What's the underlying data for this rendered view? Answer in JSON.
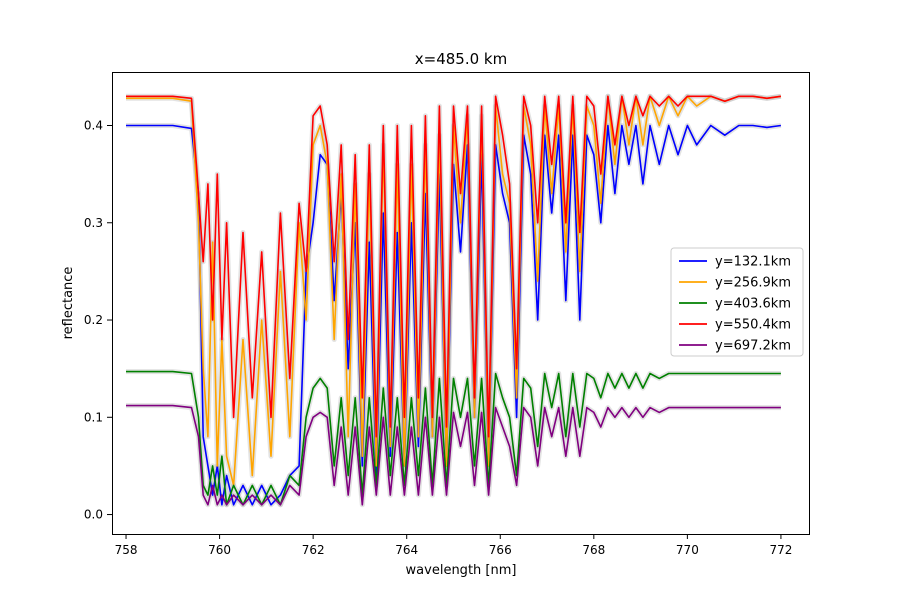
{
  "chart_data": {
    "type": "line",
    "title": "x=485.0 km",
    "xlabel": "wavelength [nm]",
    "ylabel": "reflectance",
    "xlim": [
      757.7,
      772.6
    ],
    "ylim": [
      -0.02,
      0.455
    ],
    "xticks": [
      758,
      760,
      762,
      764,
      766,
      768,
      770,
      772
    ],
    "xtick_labels": [
      "758",
      "760",
      "762",
      "764",
      "766",
      "768",
      "770",
      "772"
    ],
    "yticks": [
      0.0,
      0.1,
      0.2,
      0.3,
      0.4
    ],
    "ytick_labels": [
      "0.0",
      "0.1",
      "0.2",
      "0.3",
      "0.4"
    ],
    "grid": false,
    "legend_position": "center-right",
    "uncertainty_band_color": "#b0b0b0",
    "x": [
      758.0,
      759.0,
      759.4,
      759.55,
      759.65,
      759.75,
      759.85,
      759.95,
      760.05,
      760.15,
      760.3,
      760.5,
      760.7,
      760.9,
      761.1,
      761.3,
      761.5,
      761.7,
      761.85,
      762.0,
      762.15,
      762.3,
      762.45,
      762.6,
      762.75,
      762.9,
      763.05,
      763.2,
      763.35,
      763.5,
      763.65,
      763.8,
      763.95,
      764.1,
      764.25,
      764.4,
      764.55,
      764.7,
      764.85,
      765.0,
      765.15,
      765.3,
      765.45,
      765.6,
      765.75,
      765.9,
      766.05,
      766.2,
      766.35,
      766.5,
      766.65,
      766.8,
      766.95,
      767.1,
      767.25,
      767.4,
      767.55,
      767.7,
      767.85,
      768.0,
      768.15,
      768.3,
      768.45,
      768.6,
      768.75,
      768.9,
      769.05,
      769.2,
      769.4,
      769.6,
      769.8,
      770.0,
      770.2,
      770.5,
      770.8,
      771.1,
      771.4,
      771.7,
      772.0
    ],
    "series": [
      {
        "name": "y=132.1km",
        "color": "#0000ff",
        "values": [
          0.4,
          0.4,
          0.397,
          0.33,
          0.08,
          0.05,
          0.02,
          0.05,
          0.01,
          0.04,
          0.01,
          0.03,
          0.01,
          0.03,
          0.01,
          0.02,
          0.04,
          0.05,
          0.25,
          0.3,
          0.37,
          0.36,
          0.22,
          0.33,
          0.15,
          0.3,
          0.05,
          0.28,
          0.04,
          0.31,
          0.06,
          0.29,
          0.05,
          0.3,
          0.07,
          0.33,
          0.08,
          0.35,
          0.05,
          0.36,
          0.27,
          0.38,
          0.1,
          0.37,
          0.05,
          0.38,
          0.33,
          0.3,
          0.1,
          0.39,
          0.35,
          0.2,
          0.39,
          0.31,
          0.39,
          0.22,
          0.39,
          0.2,
          0.39,
          0.37,
          0.3,
          0.4,
          0.33,
          0.4,
          0.36,
          0.4,
          0.34,
          0.4,
          0.36,
          0.4,
          0.37,
          0.4,
          0.38,
          0.4,
          0.39,
          0.4,
          0.4,
          0.398,
          0.4
        ]
      },
      {
        "name": "y=256.9km",
        "color": "#ffa500",
        "values": [
          0.428,
          0.428,
          0.425,
          0.3,
          0.15,
          0.08,
          0.28,
          0.05,
          0.18,
          0.06,
          0.03,
          0.18,
          0.04,
          0.2,
          0.06,
          0.25,
          0.08,
          0.3,
          0.2,
          0.38,
          0.4,
          0.36,
          0.18,
          0.35,
          0.08,
          0.34,
          0.06,
          0.35,
          0.05,
          0.38,
          0.07,
          0.36,
          0.05,
          0.36,
          0.08,
          0.38,
          0.08,
          0.39,
          0.05,
          0.4,
          0.3,
          0.41,
          0.1,
          0.41,
          0.05,
          0.42,
          0.35,
          0.32,
          0.12,
          0.42,
          0.38,
          0.24,
          0.42,
          0.33,
          0.42,
          0.27,
          0.42,
          0.25,
          0.42,
          0.4,
          0.32,
          0.43,
          0.36,
          0.43,
          0.38,
          0.43,
          0.38,
          0.43,
          0.4,
          0.43,
          0.41,
          0.43,
          0.42,
          0.43,
          0.425,
          0.43,
          0.43,
          0.428,
          0.43
        ]
      },
      {
        "name": "y=403.6km",
        "color": "#008000",
        "values": [
          0.147,
          0.147,
          0.145,
          0.1,
          0.03,
          0.02,
          0.05,
          0.02,
          0.06,
          0.01,
          0.03,
          0.01,
          0.03,
          0.01,
          0.03,
          0.01,
          0.04,
          0.03,
          0.1,
          0.13,
          0.14,
          0.13,
          0.05,
          0.12,
          0.04,
          0.12,
          0.02,
          0.12,
          0.03,
          0.13,
          0.04,
          0.12,
          0.03,
          0.12,
          0.04,
          0.13,
          0.03,
          0.14,
          0.03,
          0.14,
          0.1,
          0.14,
          0.05,
          0.14,
          0.03,
          0.145,
          0.12,
          0.1,
          0.04,
          0.14,
          0.13,
          0.07,
          0.145,
          0.11,
          0.145,
          0.08,
          0.145,
          0.09,
          0.145,
          0.14,
          0.12,
          0.145,
          0.13,
          0.145,
          0.13,
          0.145,
          0.13,
          0.145,
          0.14,
          0.145,
          0.145,
          0.145,
          0.145,
          0.145,
          0.145,
          0.145,
          0.145,
          0.145,
          0.145
        ]
      },
      {
        "name": "y=550.4km",
        "color": "#ff0000",
        "values": [
          0.43,
          0.43,
          0.428,
          0.33,
          0.26,
          0.34,
          0.2,
          0.35,
          0.18,
          0.3,
          0.1,
          0.29,
          0.12,
          0.27,
          0.1,
          0.31,
          0.14,
          0.32,
          0.25,
          0.41,
          0.42,
          0.38,
          0.26,
          0.38,
          0.18,
          0.37,
          0.12,
          0.38,
          0.08,
          0.4,
          0.09,
          0.4,
          0.1,
          0.4,
          0.12,
          0.41,
          0.1,
          0.42,
          0.09,
          0.42,
          0.33,
          0.42,
          0.12,
          0.42,
          0.08,
          0.43,
          0.39,
          0.34,
          0.15,
          0.43,
          0.4,
          0.3,
          0.43,
          0.36,
          0.43,
          0.3,
          0.43,
          0.29,
          0.43,
          0.42,
          0.35,
          0.43,
          0.38,
          0.43,
          0.4,
          0.43,
          0.41,
          0.43,
          0.42,
          0.43,
          0.42,
          0.43,
          0.43,
          0.43,
          0.425,
          0.43,
          0.43,
          0.428,
          0.43
        ]
      },
      {
        "name": "y=697.2km",
        "color": "#800080",
        "values": [
          0.112,
          0.112,
          0.11,
          0.08,
          0.02,
          0.01,
          0.03,
          0.01,
          0.02,
          0.01,
          0.02,
          0.01,
          0.02,
          0.01,
          0.02,
          0.01,
          0.03,
          0.02,
          0.08,
          0.1,
          0.105,
          0.1,
          0.03,
          0.09,
          0.02,
          0.09,
          0.01,
          0.09,
          0.02,
          0.1,
          0.02,
          0.09,
          0.02,
          0.09,
          0.02,
          0.1,
          0.02,
          0.1,
          0.02,
          0.105,
          0.07,
          0.105,
          0.03,
          0.105,
          0.02,
          0.11,
          0.09,
          0.07,
          0.03,
          0.11,
          0.1,
          0.05,
          0.11,
          0.08,
          0.11,
          0.06,
          0.11,
          0.06,
          0.11,
          0.105,
          0.09,
          0.11,
          0.1,
          0.11,
          0.1,
          0.11,
          0.1,
          0.11,
          0.105,
          0.11,
          0.11,
          0.11,
          0.11,
          0.11,
          0.11,
          0.11,
          0.11,
          0.11,
          0.11
        ]
      }
    ]
  }
}
